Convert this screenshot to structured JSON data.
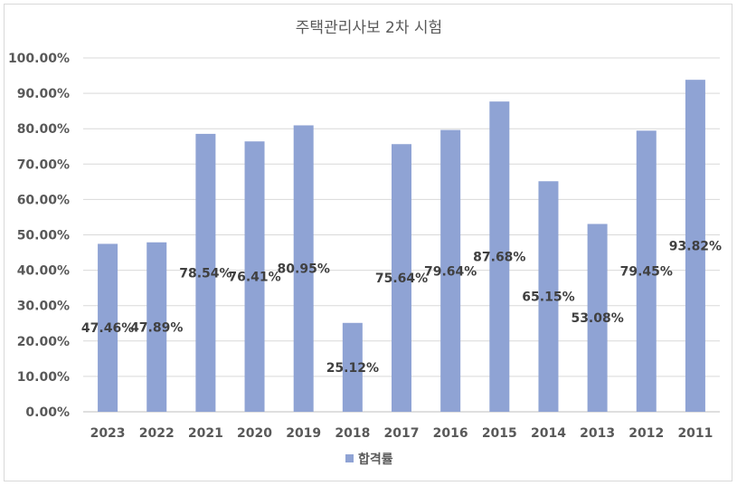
{
  "chart_data": {
    "type": "bar",
    "title": "주택관리사보 2차 시험",
    "categories": [
      "2023",
      "2022",
      "2021",
      "2020",
      "2019",
      "2018",
      "2017",
      "2016",
      "2015",
      "2014",
      "2013",
      "2012",
      "2011"
    ],
    "series": [
      {
        "name": "합격률",
        "values": [
          47.46,
          47.89,
          78.54,
          76.41,
          80.95,
          25.12,
          75.64,
          79.64,
          87.68,
          65.15,
          53.08,
          79.45,
          93.82
        ],
        "labels": [
          "47.46%",
          "47.89%",
          "78.54%",
          "76.41%",
          "80.95%",
          "25.12%",
          "75.64%",
          "79.64%",
          "87.68%",
          "65.15%",
          "53.08%",
          "79.45%",
          "93.82%"
        ],
        "color": "#8fa3d4"
      }
    ],
    "y_ticks": [
      "0.00%",
      "10.00%",
      "20.00%",
      "30.00%",
      "40.00%",
      "50.00%",
      "60.00%",
      "70.00%",
      "80.00%",
      "90.00%",
      "100.00%"
    ],
    "ylim": [
      0,
      100
    ],
    "grid": true,
    "legend_position": "bottom"
  }
}
